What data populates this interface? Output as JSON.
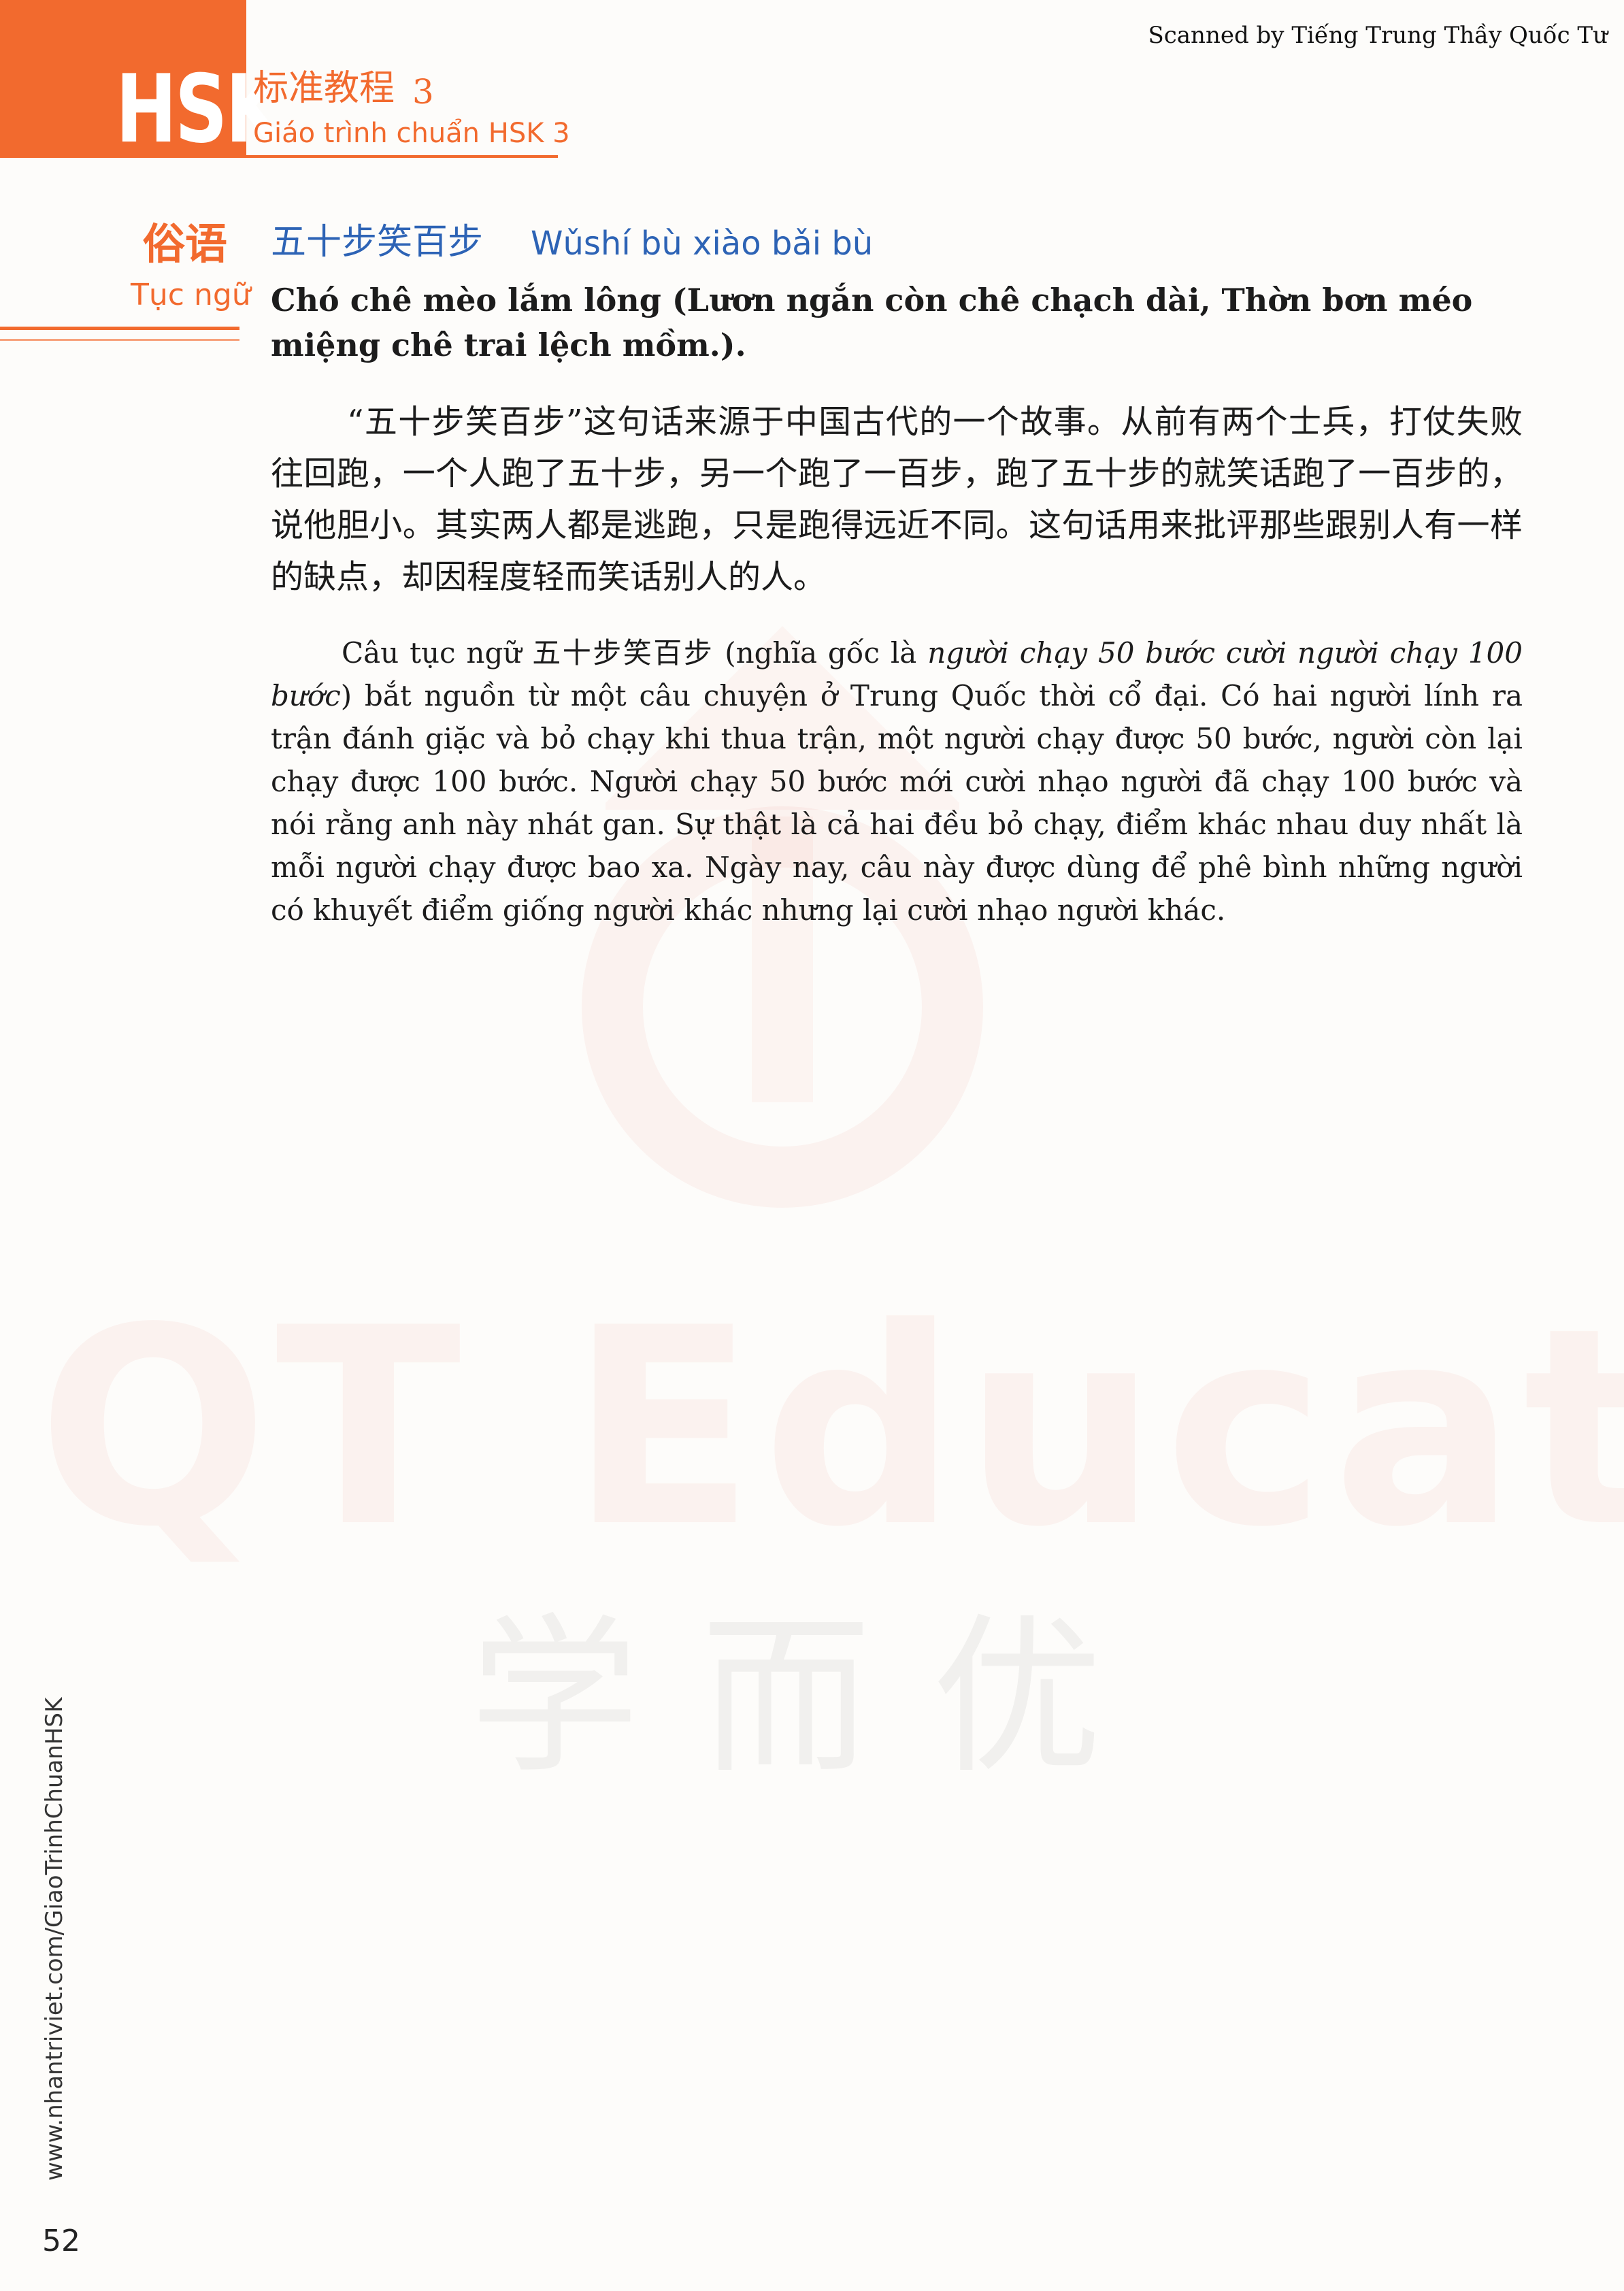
{
  "header": {
    "brand": "HSK",
    "series_title_cn": "标准教程",
    "series_level": "3",
    "series_title_vi": "Giáo trình chuẩn HSK 3",
    "scanned_by": "Scanned by Tiếng Trung Thầy Quốc Tư"
  },
  "section": {
    "label_cn": "俗语",
    "label_vi": "Tục ngữ",
    "proverb_cn": "五十步笑百步",
    "proverb_pinyin": "Wǔshí bù xiào bǎi bù",
    "meaning_vi": "Chó chê mèo lắm lông (Lươn ngắn còn chê chạch dài, Thờn bơn méo miệng chê trai lệch mồm.).",
    "paragraph_cn": "“五十步笑百步”这句话来源于中国古代的一个故事。从前有两个士兵，打仗失败往回跑，一个人跑了五十步，另一个跑了一百步，跑了五十步的就笑话跑了一百步的，说他胆小。其实两人都是逃跑，只是跑得远近不同。这句话用来批评那些跟别人有一样的缺点，却因程度轻而笑话别人的人。",
    "paragraph_vi_part1": "Câu tục ngữ 五十步笑百步 (nghĩa gốc là ",
    "paragraph_vi_italic": "người chạy 50 bước cười người chạy 100 bước",
    "paragraph_vi_part2": ") bắt nguồn từ một câu chuyện ở Trung Quốc thời cổ đại. Có hai người lính ra trận đánh giặc và bỏ chạy khi thua trận, một người chạy được 50 bước, người còn lại chạy được 100 bước. Người chạy 50 bước mới cười nhạo người đã chạy 100 bước và nói rằng anh này nhát gan. Sự thật là cả hai đều bỏ chạy, điểm khác nhau duy nhất là mỗi người chạy được bao xa. Ngày nay, câu này được dùng để phê bình những người có khuyết điểm giống người khác nhưng lại cười nhạo người khác."
  },
  "watermark": {
    "text": "QT Education",
    "text_cn": "学而优"
  },
  "footer": {
    "side_url": "www.nhantriviet.com/GiaoTrinhChuanHSK",
    "page_number": "52"
  },
  "colors": {
    "accent_orange": "#f26a2e",
    "proverb_blue": "#2d63b5"
  }
}
